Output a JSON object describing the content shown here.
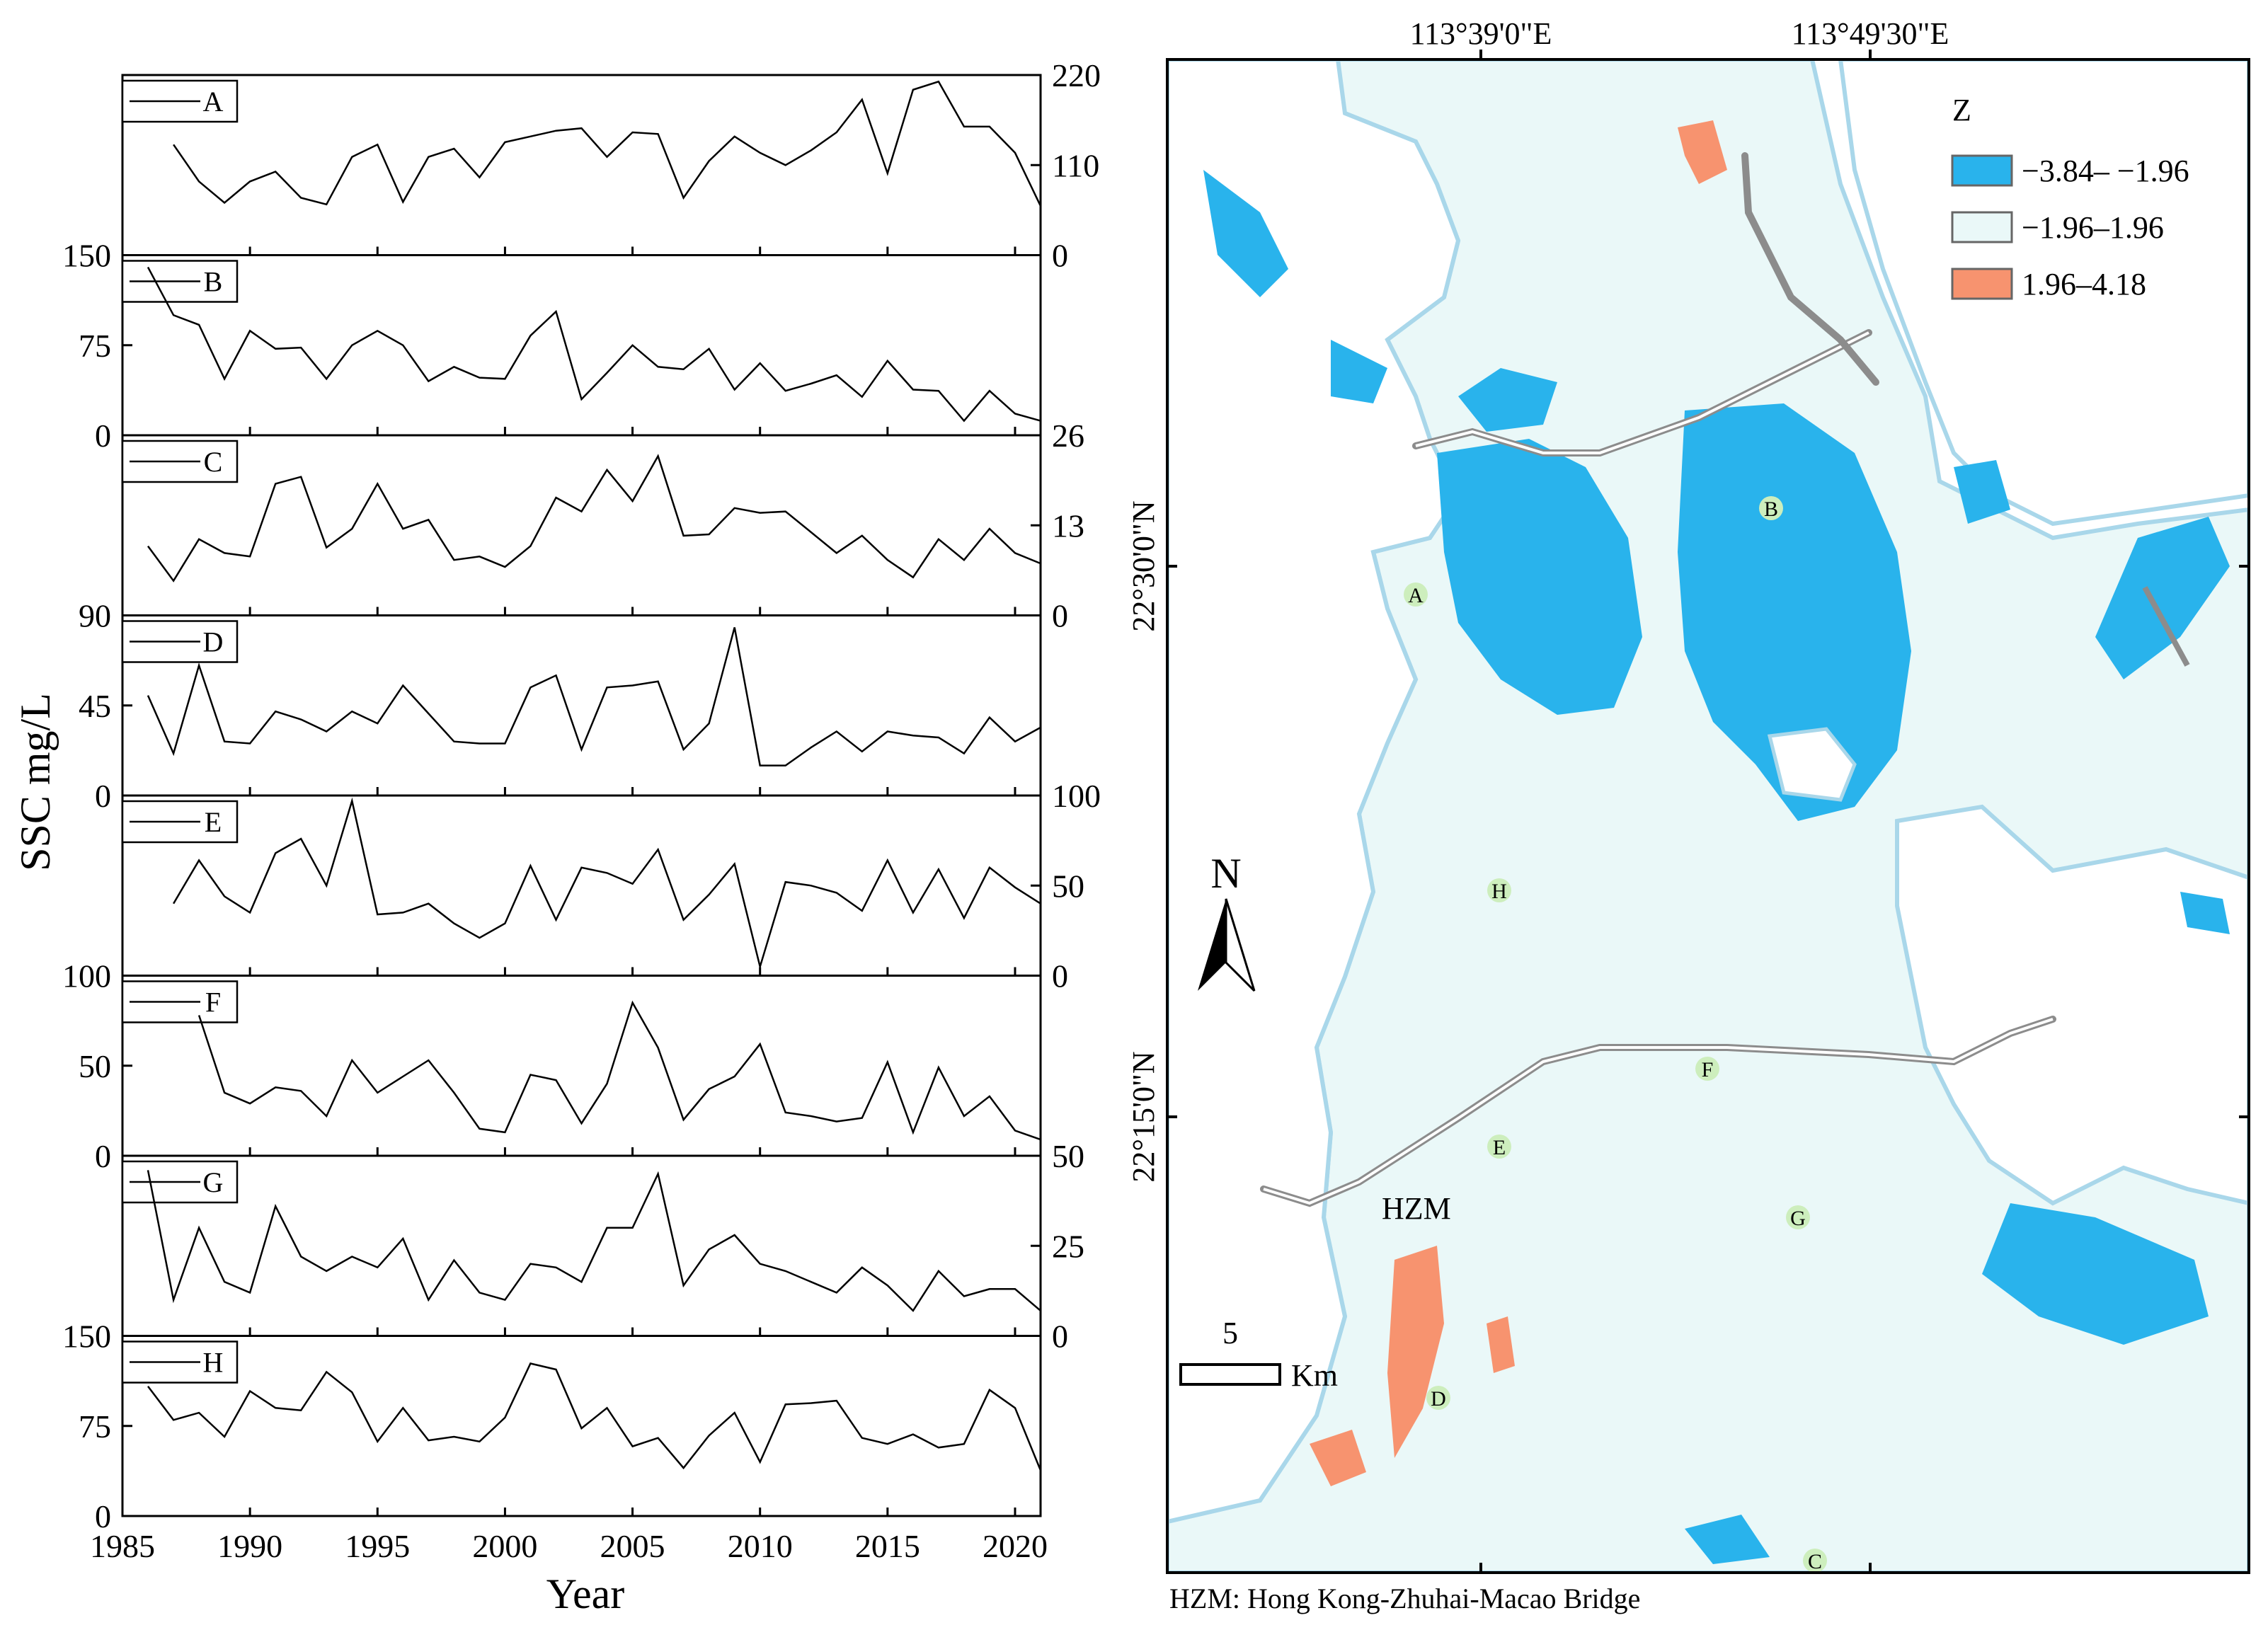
{
  "chart_data": [
    {
      "type": "line",
      "panels": [
        {
          "name": "A",
          "ylim": [
            0,
            220
          ],
          "ticks": [
            "220",
            "110",
            "0"
          ],
          "axis_side": "right",
          "x": [
            1987,
            1988,
            1989,
            1990,
            1991,
            1992,
            1993,
            1994,
            1995,
            1996,
            1997,
            1998,
            1999,
            2000,
            2001,
            2002,
            2003,
            2004,
            2005,
            2006,
            2007,
            2008,
            2009,
            2010,
            2011,
            2012,
            2013,
            2014,
            2015,
            2016,
            2017,
            2018,
            2019,
            2020,
            2021
          ],
          "values": [
            135,
            90,
            64,
            90,
            102,
            70,
            62,
            120,
            135,
            65,
            120,
            130,
            95,
            138,
            145,
            152,
            155,
            120,
            150,
            148,
            70,
            115,
            145,
            125,
            110,
            128,
            150,
            190,
            100,
            202,
            212,
            157,
            157,
            125,
            60
          ]
        },
        {
          "name": "B",
          "ylim": [
            0,
            150
          ],
          "ticks": [
            "150",
            "75",
            "0"
          ],
          "axis_side": "left",
          "x": [
            1986,
            1987,
            1988,
            1989,
            1990,
            1991,
            1992,
            1993,
            1994,
            1995,
            1996,
            1997,
            1998,
            1999,
            2000,
            2001,
            2002,
            2003,
            2004,
            2005,
            2006,
            2007,
            2008,
            2009,
            2010,
            2011,
            2012,
            2013,
            2014,
            2015,
            2016,
            2017,
            2018,
            2019,
            2020,
            2021
          ],
          "values": [
            140,
            100,
            92,
            47,
            87,
            72,
            73,
            47,
            75,
            87,
            75,
            45,
            57,
            48,
            47,
            83,
            103,
            30,
            52,
            75,
            57,
            55,
            72,
            38,
            60,
            37,
            43,
            50,
            32,
            62,
            38,
            37,
            12,
            37,
            18,
            12
          ]
        },
        {
          "name": "C",
          "ylim": [
            0,
            26
          ],
          "ticks": [
            "26",
            "13",
            "0"
          ],
          "axis_side": "right",
          "x": [
            1986,
            1987,
            1988,
            1989,
            1990,
            1991,
            1992,
            1993,
            1994,
            1995,
            1996,
            1997,
            1998,
            1999,
            2000,
            2001,
            2002,
            2003,
            2004,
            2005,
            2006,
            2007,
            2008,
            2009,
            2010,
            2011,
            2012,
            2013,
            2014,
            2015,
            2016,
            2017,
            2018,
            2019,
            2020,
            2021
          ],
          "values": [
            10,
            5,
            11,
            9,
            8.5,
            19,
            20,
            9.8,
            12.5,
            19,
            12.5,
            13.8,
            8,
            8.5,
            7,
            10,
            17,
            15,
            21,
            16.5,
            23,
            11.5,
            11.7,
            15.5,
            14.8,
            15,
            12,
            9,
            11.5,
            8,
            5.5,
            11,
            8,
            12.5,
            9,
            7.5
          ]
        },
        {
          "name": "D",
          "ylim": [
            0,
            90
          ],
          "ticks": [
            "90",
            "45",
            "0"
          ],
          "axis_side": "left",
          "x": [
            1986,
            1987,
            1988,
            1989,
            1990,
            1991,
            1992,
            1993,
            1994,
            1995,
            1996,
            1997,
            1998,
            1999,
            2000,
            2001,
            2002,
            2003,
            2004,
            2005,
            2006,
            2007,
            2008,
            2009,
            2010,
            2011,
            2012,
            2013,
            2014,
            2015,
            2016,
            2017,
            2018,
            2019,
            2020,
            2021
          ],
          "values": [
            50,
            21,
            65,
            27,
            26,
            42,
            38,
            32,
            42,
            36,
            55,
            41,
            27,
            26,
            26,
            54,
            60,
            23,
            54,
            55,
            57,
            23,
            36,
            84,
            15,
            15,
            24,
            32,
            22,
            32,
            30,
            29,
            21,
            39,
            27,
            34
          ]
        },
        {
          "name": "E",
          "ylim": [
            0,
            100
          ],
          "ticks": [
            "100",
            "50",
            "0"
          ],
          "axis_side": "right",
          "x": [
            1987,
            1988,
            1989,
            1990,
            1991,
            1992,
            1993,
            1994,
            1995,
            1996,
            1997,
            1998,
            1999,
            2000,
            2001,
            2002,
            2003,
            2004,
            2005,
            2006,
            2007,
            2008,
            2009,
            2010,
            2011,
            2012,
            2013,
            2014,
            2015,
            2016,
            2017,
            2018,
            2019,
            2020,
            2021
          ],
          "values": [
            40,
            64,
            44,
            35,
            68,
            76,
            50,
            97,
            34,
            35,
            40,
            29,
            21,
            29,
            61,
            31,
            60,
            57,
            51,
            70,
            31,
            45,
            62,
            5,
            52,
            50,
            46,
            36,
            64,
            35,
            59,
            32,
            60,
            49,
            40
          ]
        },
        {
          "name": "F",
          "ylim": [
            0,
            100
          ],
          "ticks": [
            "100",
            "50",
            "0"
          ],
          "axis_side": "left",
          "x": [
            1988,
            1989,
            1990,
            1991,
            1992,
            1993,
            1994,
            1995,
            1996,
            1997,
            1998,
            1999,
            2000,
            2001,
            2002,
            2003,
            2004,
            2005,
            2006,
            2007,
            2008,
            2009,
            2010,
            2011,
            2012,
            2013,
            2014,
            2015,
            2016,
            2017,
            2018,
            2019,
            2020,
            2021
          ],
          "values": [
            78,
            35,
            29,
            38,
            36,
            22,
            53,
            35,
            44,
            53,
            35,
            15,
            13,
            45,
            42,
            18,
            40,
            85,
            60,
            20,
            37,
            44,
            62,
            24,
            22,
            19,
            21,
            52,
            13,
            49,
            22,
            33,
            14,
            9
          ]
        },
        {
          "name": "G",
          "ylim": [
            0,
            50
          ],
          "ticks": [
            "50",
            "25",
            "0"
          ],
          "axis_side": "right",
          "x": [
            1986,
            1987,
            1988,
            1989,
            1990,
            1991,
            1992,
            1993,
            1994,
            1995,
            1996,
            1997,
            1998,
            1999,
            2000,
            2001,
            2002,
            2003,
            2004,
            2005,
            2006,
            2007,
            2008,
            2009,
            2010,
            2011,
            2012,
            2013,
            2014,
            2015,
            2016,
            2017,
            2018,
            2019,
            2020,
            2021
          ],
          "values": [
            46,
            10,
            30,
            15,
            12,
            36,
            22,
            18,
            22,
            19,
            27,
            10,
            21,
            12,
            10,
            20,
            19,
            15,
            30,
            30,
            45,
            14,
            24,
            28,
            20,
            18,
            15,
            12,
            19,
            14,
            7,
            18,
            11,
            13,
            13,
            7
          ]
        },
        {
          "name": "H",
          "ylim": [
            0,
            150
          ],
          "ticks": [
            "150",
            "75",
            "0"
          ],
          "axis_side": "left",
          "x": [
            1986,
            1987,
            1988,
            1989,
            1990,
            1991,
            1992,
            1993,
            1994,
            1995,
            1996,
            1997,
            1998,
            1999,
            2000,
            2001,
            2002,
            2003,
            2004,
            2005,
            2006,
            2007,
            2008,
            2009,
            2010,
            2011,
            2012,
            2013,
            2014,
            2015,
            2016,
            2017,
            2018,
            2019,
            2020,
            2021
          ],
          "values": [
            108,
            80,
            86,
            66,
            104,
            90,
            88,
            120,
            103,
            62,
            90,
            63,
            66,
            62,
            82,
            127,
            122,
            73,
            90,
            58,
            65,
            40,
            67,
            86,
            45,
            93,
            94,
            96,
            65,
            60,
            68,
            57,
            60,
            105,
            90,
            38
          ]
        }
      ],
      "xlim": [
        1985,
        2021
      ],
      "xticks": [
        "1985",
        "1990",
        "1995",
        "2000",
        "2005",
        "2010",
        "2015",
        "2020"
      ],
      "xlabel": "Year",
      "ylabel": "SSC mg/L"
    },
    {
      "type": "map",
      "longitude_labels": [
        "113°39'0\"E",
        "113°49'30\"E"
      ],
      "latitude_labels": [
        "22°30'0\"N",
        "22°15'0\"N"
      ],
      "legend": {
        "title": "Z",
        "entries": [
          {
            "label": "−3.84– −1.96",
            "color": "#29b3ec"
          },
          {
            "label": "−1.96–1.96",
            "color": "#eaf8f8"
          },
          {
            "label": "1.96–4.18",
            "color": "#f7936f"
          }
        ]
      },
      "north_label": "N",
      "scale_value": "5",
      "scale_unit": "Km",
      "bridge_label": "HZM",
      "footnote": "HZM: Hong Kong-Zhuhai-Macao Bridge",
      "sites": [
        "A",
        "B",
        "C",
        "D",
        "E",
        "F",
        "G",
        "H"
      ],
      "colors": {
        "water": "#eaf8f8",
        "shore": "#a9d7ea",
        "land": "#ffffff",
        "bridge": "#8c8c8c",
        "site": "#cdeebd"
      }
    }
  ]
}
